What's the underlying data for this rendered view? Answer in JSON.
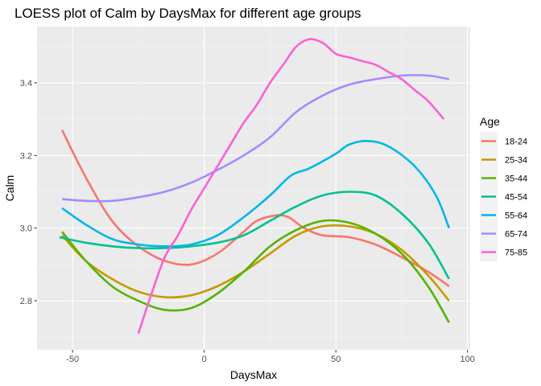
{
  "chart_data": {
    "type": "line",
    "title": "LOESS plot of Calm by DaysMax for different age groups",
    "xlabel": "DaysMax",
    "ylabel": "Calm",
    "xlim": [
      -63.5,
      101
    ],
    "ylim": [
      2.665,
      3.555
    ],
    "x_ticks": [
      -50,
      0,
      50,
      100
    ],
    "y_ticks": [
      2.8,
      3.0,
      3.2,
      3.4
    ],
    "x_tick_labels": [
      "-50",
      "0",
      "50",
      "100"
    ],
    "y_tick_labels": [
      "2.8",
      "3.0",
      "3.2",
      "3.4"
    ],
    "grid": true,
    "legend_title": "Age",
    "legend_position": "right",
    "series": [
      {
        "name": "18-24",
        "color": "#F8766D",
        "points": [
          [
            -54,
            3.27
          ],
          [
            -45,
            3.14
          ],
          [
            -35,
            3.02
          ],
          [
            -25,
            2.95
          ],
          [
            -15,
            2.91
          ],
          [
            -5,
            2.9
          ],
          [
            5,
            2.93
          ],
          [
            15,
            2.99
          ],
          [
            20,
            3.02
          ],
          [
            27,
            3.035
          ],
          [
            32,
            3.03
          ],
          [
            38,
            3.0
          ],
          [
            45,
            2.98
          ],
          [
            55,
            2.975
          ],
          [
            65,
            2.955
          ],
          [
            75,
            2.92
          ],
          [
            85,
            2.88
          ],
          [
            93,
            2.84
          ]
        ]
      },
      {
        "name": "25-34",
        "color": "#C49A00",
        "points": [
          [
            -54,
            2.98
          ],
          [
            -45,
            2.91
          ],
          [
            -35,
            2.86
          ],
          [
            -25,
            2.825
          ],
          [
            -15,
            2.81
          ],
          [
            -5,
            2.815
          ],
          [
            5,
            2.84
          ],
          [
            15,
            2.88
          ],
          [
            25,
            2.93
          ],
          [
            35,
            2.98
          ],
          [
            45,
            3.005
          ],
          [
            55,
            3.005
          ],
          [
            65,
            2.985
          ],
          [
            75,
            2.94
          ],
          [
            85,
            2.87
          ],
          [
            93,
            2.8
          ]
        ]
      },
      {
        "name": "35-44",
        "color": "#53B400",
        "points": [
          [
            -54,
            2.99
          ],
          [
            -45,
            2.91
          ],
          [
            -35,
            2.84
          ],
          [
            -25,
            2.8
          ],
          [
            -15,
            2.775
          ],
          [
            -5,
            2.78
          ],
          [
            5,
            2.82
          ],
          [
            15,
            2.88
          ],
          [
            25,
            2.95
          ],
          [
            35,
            2.995
          ],
          [
            45,
            3.02
          ],
          [
            55,
            3.015
          ],
          [
            65,
            2.985
          ],
          [
            75,
            2.93
          ],
          [
            85,
            2.84
          ],
          [
            93,
            2.74
          ]
        ]
      },
      {
        "name": "45-54",
        "color": "#00C094",
        "points": [
          [
            -55,
            2.975
          ],
          [
            -45,
            2.96
          ],
          [
            -35,
            2.95
          ],
          [
            -25,
            2.945
          ],
          [
            -15,
            2.945
          ],
          [
            -5,
            2.95
          ],
          [
            5,
            2.96
          ],
          [
            15,
            2.98
          ],
          [
            25,
            3.02
          ],
          [
            35,
            3.06
          ],
          [
            45,
            3.09
          ],
          [
            55,
            3.1
          ],
          [
            65,
            3.09
          ],
          [
            75,
            3.04
          ],
          [
            85,
            2.96
          ],
          [
            93,
            2.86
          ]
        ]
      },
      {
        "name": "55-64",
        "color": "#00B6EB",
        "points": [
          [
            -54,
            3.055
          ],
          [
            -45,
            3.01
          ],
          [
            -35,
            2.97
          ],
          [
            -25,
            2.955
          ],
          [
            -15,
            2.95
          ],
          [
            -5,
            2.955
          ],
          [
            5,
            2.98
          ],
          [
            15,
            3.03
          ],
          [
            25,
            3.09
          ],
          [
            33,
            3.145
          ],
          [
            40,
            3.165
          ],
          [
            50,
            3.205
          ],
          [
            55,
            3.23
          ],
          [
            62,
            3.24
          ],
          [
            70,
            3.225
          ],
          [
            80,
            3.17
          ],
          [
            88,
            3.09
          ],
          [
            93,
            3.0
          ]
        ]
      },
      {
        "name": "65-74",
        "color": "#A58AFF",
        "points": [
          [
            -54,
            3.08
          ],
          [
            -45,
            3.075
          ],
          [
            -35,
            3.075
          ],
          [
            -25,
            3.085
          ],
          [
            -15,
            3.1
          ],
          [
            -5,
            3.125
          ],
          [
            5,
            3.16
          ],
          [
            15,
            3.2
          ],
          [
            25,
            3.25
          ],
          [
            35,
            3.32
          ],
          [
            45,
            3.365
          ],
          [
            55,
            3.395
          ],
          [
            65,
            3.41
          ],
          [
            75,
            3.42
          ],
          [
            85,
            3.42
          ],
          [
            93,
            3.41
          ]
        ]
      },
      {
        "name": "75-85",
        "color": "#FB61D7",
        "points": [
          [
            -25,
            2.71
          ],
          [
            -20,
            2.82
          ],
          [
            -15,
            2.92
          ],
          [
            -10,
            2.98
          ],
          [
            -5,
            3.05
          ],
          [
            0,
            3.11
          ],
          [
            5,
            3.17
          ],
          [
            10,
            3.23
          ],
          [
            15,
            3.29
          ],
          [
            20,
            3.34
          ],
          [
            25,
            3.4
          ],
          [
            30,
            3.45
          ],
          [
            35,
            3.5
          ],
          [
            40,
            3.52
          ],
          [
            45,
            3.51
          ],
          [
            50,
            3.48
          ],
          [
            55,
            3.47
          ],
          [
            60,
            3.46
          ],
          [
            65,
            3.45
          ],
          [
            70,
            3.43
          ],
          [
            75,
            3.41
          ],
          [
            80,
            3.38
          ],
          [
            85,
            3.35
          ],
          [
            91,
            3.3
          ]
        ]
      }
    ]
  }
}
